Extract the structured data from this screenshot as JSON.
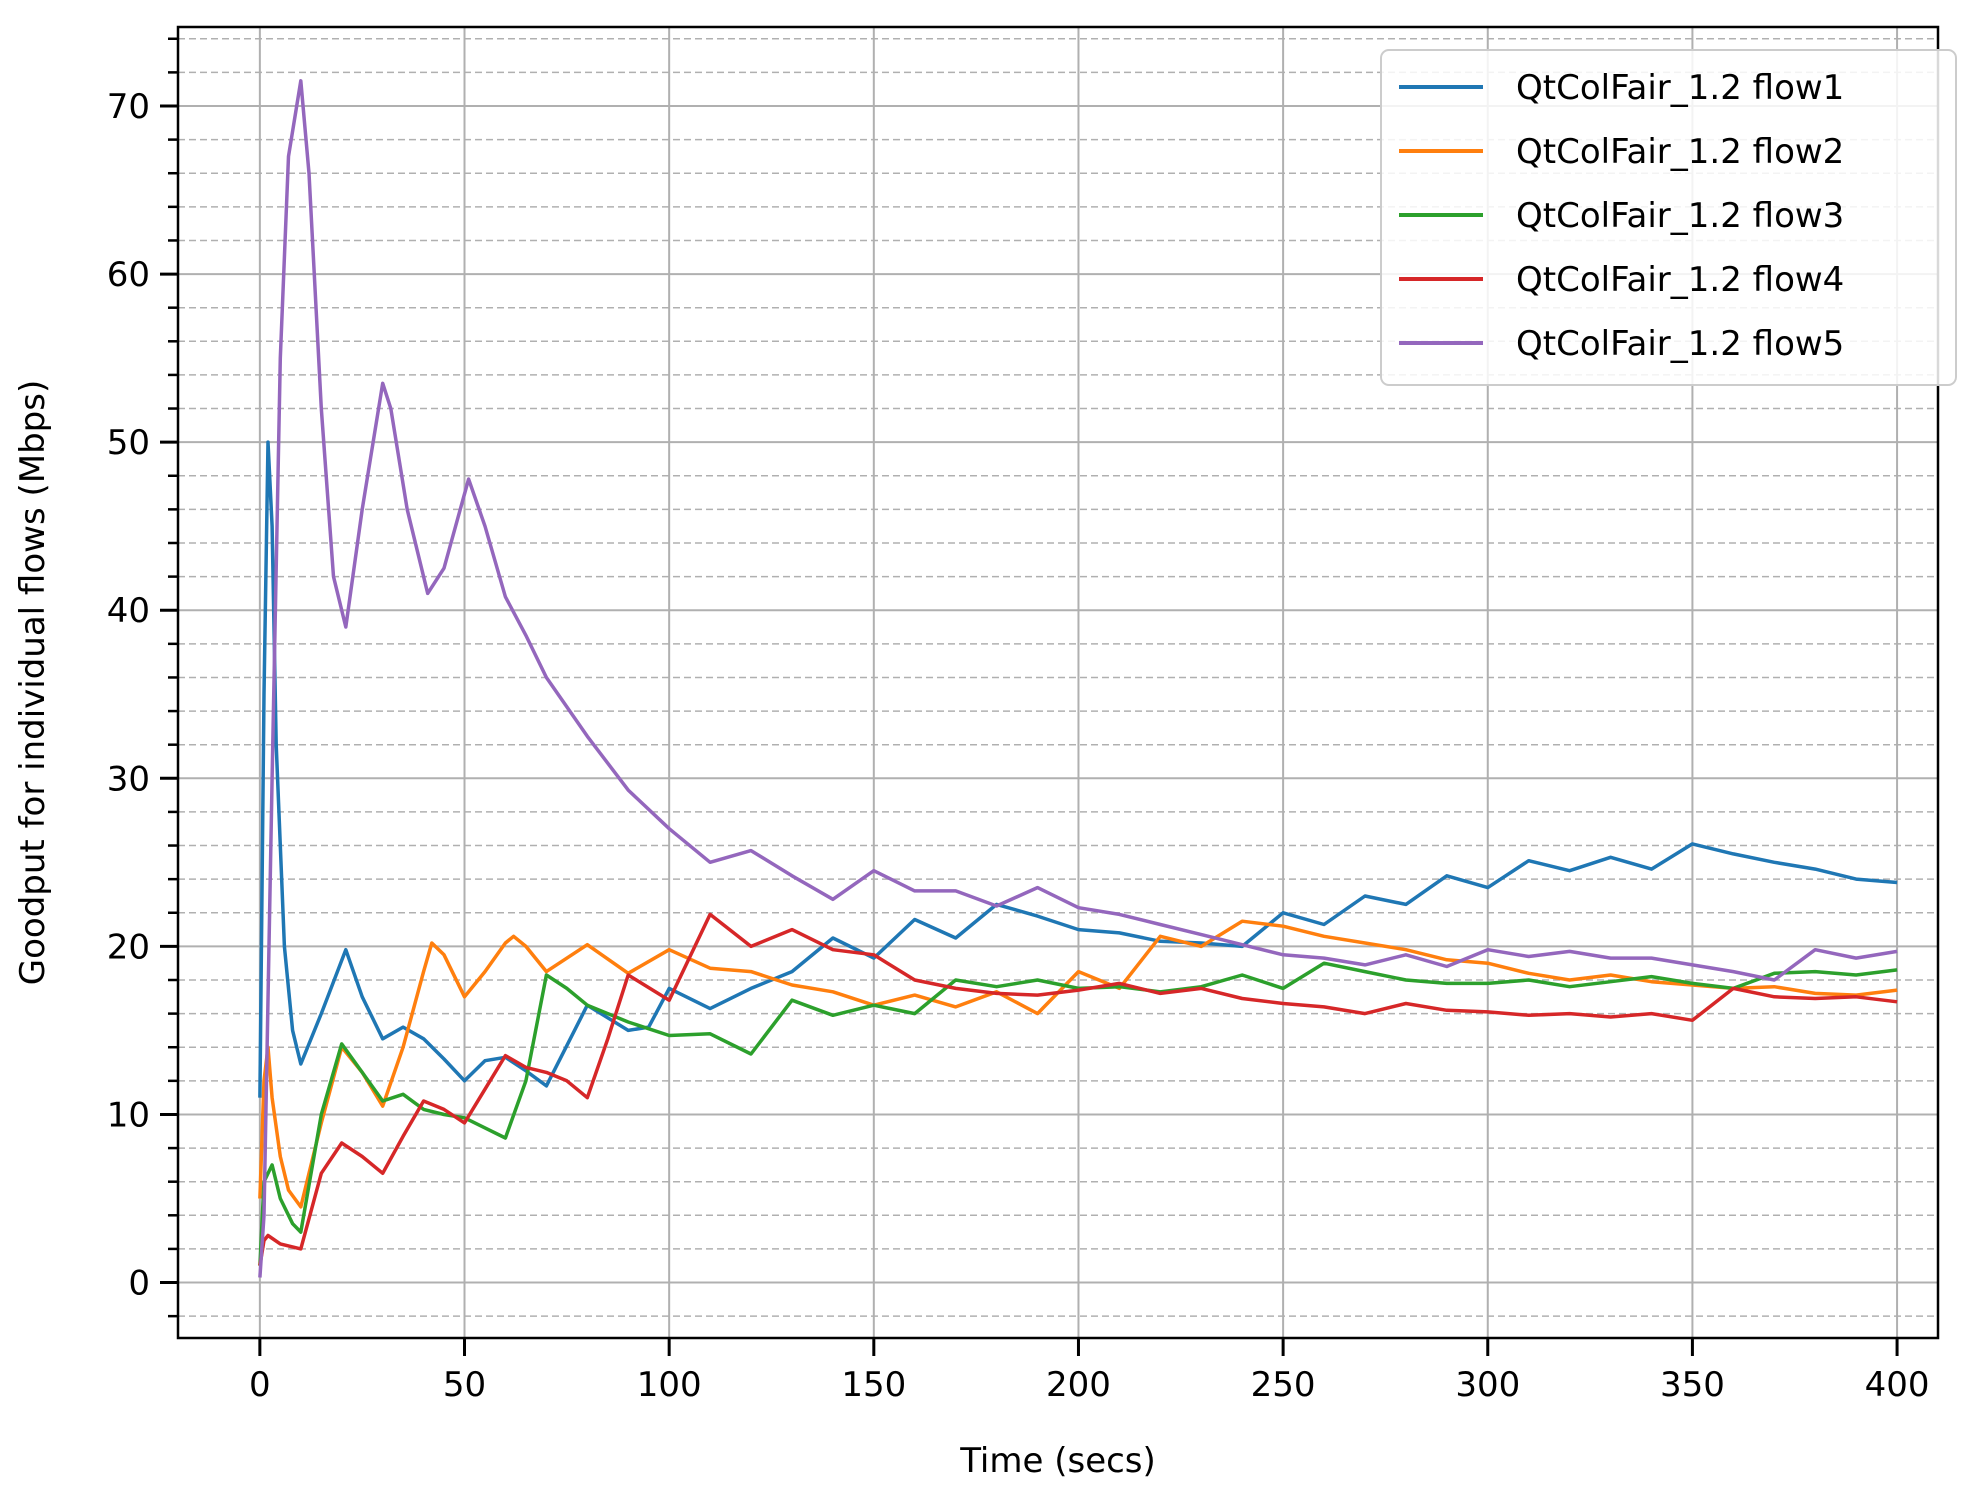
{
  "chart_data": {
    "type": "line",
    "title": "",
    "xlabel": "Time (secs)",
    "ylabel": "Goodput for individual flows (Mbps)",
    "xlim": [
      -20,
      410
    ],
    "ylim": [
      -3.3,
      74.7
    ],
    "xticks": [
      0,
      50,
      100,
      150,
      200,
      250,
      300,
      350,
      400
    ],
    "yticks": [
      0,
      10,
      20,
      30,
      40,
      50,
      60,
      70
    ],
    "minor_yticks_step": 2,
    "grid": {
      "major": true,
      "minor_dashed": true
    },
    "legend_position": "top-right",
    "series": [
      {
        "name": "QtColFair_1.2 flow1",
        "color": "#1f77b4",
        "points": [
          [
            0,
            11
          ],
          [
            1,
            35
          ],
          [
            2,
            50
          ],
          [
            3,
            45
          ],
          [
            4,
            32
          ],
          [
            6,
            20
          ],
          [
            8,
            15
          ],
          [
            10,
            13
          ],
          [
            15,
            16
          ],
          [
            21,
            19.8
          ],
          [
            25,
            17
          ],
          [
            30,
            14.5
          ],
          [
            35,
            15.2
          ],
          [
            40,
            14.5
          ],
          [
            45,
            13.3
          ],
          [
            50,
            12
          ],
          [
            55,
            13.2
          ],
          [
            60,
            13.4
          ],
          [
            65,
            12.6
          ],
          [
            70,
            11.7
          ],
          [
            80,
            16.5
          ],
          [
            90,
            15
          ],
          [
            95,
            15.2
          ],
          [
            100,
            17.5
          ],
          [
            110,
            16.3
          ],
          [
            120,
            17.5
          ],
          [
            130,
            18.5
          ],
          [
            140,
            20.5
          ],
          [
            150,
            19.3
          ],
          [
            160,
            21.6
          ],
          [
            170,
            20.5
          ],
          [
            180,
            22.5
          ],
          [
            190,
            21.8
          ],
          [
            200,
            21
          ],
          [
            210,
            20.8
          ],
          [
            220,
            20.3
          ],
          [
            230,
            20.2
          ],
          [
            240,
            20
          ],
          [
            250,
            22
          ],
          [
            260,
            21.3
          ],
          [
            270,
            23
          ],
          [
            280,
            22.5
          ],
          [
            290,
            24.2
          ],
          [
            300,
            23.5
          ],
          [
            310,
            25.1
          ],
          [
            320,
            24.5
          ],
          [
            330,
            25.3
          ],
          [
            340,
            24.6
          ],
          [
            350,
            26.1
          ],
          [
            360,
            25.5
          ],
          [
            370,
            25
          ],
          [
            380,
            24.6
          ],
          [
            390,
            24
          ],
          [
            400,
            23.8
          ]
        ]
      },
      {
        "name": "QtColFair_1.2 flow2",
        "color": "#ff7f0e",
        "points": [
          [
            0,
            5
          ],
          [
            1,
            12
          ],
          [
            2,
            14
          ],
          [
            3,
            11
          ],
          [
            5,
            7.5
          ],
          [
            7,
            5.5
          ],
          [
            10,
            4.5
          ],
          [
            15,
            9.5
          ],
          [
            20,
            14
          ],
          [
            25,
            12.5
          ],
          [
            30,
            10.5
          ],
          [
            35,
            14
          ],
          [
            40,
            18.5
          ],
          [
            42,
            20.2
          ],
          [
            45,
            19.5
          ],
          [
            50,
            17
          ],
          [
            55,
            18.5
          ],
          [
            60,
            20.2
          ],
          [
            62,
            20.6
          ],
          [
            65,
            20
          ],
          [
            70,
            18.5
          ],
          [
            80,
            20.1
          ],
          [
            90,
            18.4
          ],
          [
            100,
            19.8
          ],
          [
            110,
            18.7
          ],
          [
            120,
            18.5
          ],
          [
            130,
            17.7
          ],
          [
            140,
            17.3
          ],
          [
            150,
            16.5
          ],
          [
            160,
            17.1
          ],
          [
            170,
            16.4
          ],
          [
            180,
            17.3
          ],
          [
            190,
            16
          ],
          [
            200,
            18.5
          ],
          [
            210,
            17.5
          ],
          [
            220,
            20.6
          ],
          [
            230,
            20
          ],
          [
            240,
            21.5
          ],
          [
            250,
            21.2
          ],
          [
            260,
            20.6
          ],
          [
            270,
            20.2
          ],
          [
            280,
            19.8
          ],
          [
            290,
            19.2
          ],
          [
            300,
            19
          ],
          [
            310,
            18.4
          ],
          [
            320,
            18
          ],
          [
            330,
            18.3
          ],
          [
            340,
            17.9
          ],
          [
            350,
            17.7
          ],
          [
            360,
            17.5
          ],
          [
            370,
            17.6
          ],
          [
            380,
            17.2
          ],
          [
            390,
            17.1
          ],
          [
            400,
            17.4
          ]
        ]
      },
      {
        "name": "QtColFair_1.2 flow3",
        "color": "#2ca02c",
        "points": [
          [
            0,
            1
          ],
          [
            1,
            6
          ],
          [
            3,
            7
          ],
          [
            5,
            5
          ],
          [
            8,
            3.5
          ],
          [
            10,
            3
          ],
          [
            15,
            10
          ],
          [
            20,
            14.2
          ],
          [
            25,
            12.5
          ],
          [
            30,
            10.8
          ],
          [
            35,
            11.2
          ],
          [
            40,
            10.3
          ],
          [
            45,
            10
          ],
          [
            50,
            9.8
          ],
          [
            55,
            9.2
          ],
          [
            60,
            8.6
          ],
          [
            65,
            12
          ],
          [
            70,
            18.3
          ],
          [
            75,
            17.5
          ],
          [
            80,
            16.5
          ],
          [
            90,
            15.5
          ],
          [
            100,
            14.7
          ],
          [
            110,
            14.8
          ],
          [
            120,
            13.6
          ],
          [
            130,
            16.8
          ],
          [
            140,
            15.9
          ],
          [
            150,
            16.5
          ],
          [
            160,
            16
          ],
          [
            170,
            18
          ],
          [
            180,
            17.6
          ],
          [
            190,
            18
          ],
          [
            200,
            17.5
          ],
          [
            210,
            17.6
          ],
          [
            220,
            17.3
          ],
          [
            230,
            17.6
          ],
          [
            240,
            18.3
          ],
          [
            250,
            17.5
          ],
          [
            260,
            19
          ],
          [
            270,
            18.5
          ],
          [
            280,
            18
          ],
          [
            290,
            17.8
          ],
          [
            300,
            17.8
          ],
          [
            310,
            18
          ],
          [
            320,
            17.6
          ],
          [
            330,
            17.9
          ],
          [
            340,
            18.2
          ],
          [
            350,
            17.8
          ],
          [
            360,
            17.5
          ],
          [
            370,
            18.4
          ],
          [
            380,
            18.5
          ],
          [
            390,
            18.3
          ],
          [
            400,
            18.6
          ]
        ]
      },
      {
        "name": "QtColFair_1.2 flow4",
        "color": "#d62728",
        "points": [
          [
            0,
            1
          ],
          [
            1,
            2.5
          ],
          [
            2,
            2.8
          ],
          [
            5,
            2.3
          ],
          [
            10,
            2
          ],
          [
            15,
            6.5
          ],
          [
            20,
            8.3
          ],
          [
            25,
            7.5
          ],
          [
            30,
            6.5
          ],
          [
            35,
            8.7
          ],
          [
            40,
            10.8
          ],
          [
            45,
            10.3
          ],
          [
            50,
            9.5
          ],
          [
            55,
            11.5
          ],
          [
            60,
            13.5
          ],
          [
            65,
            12.8
          ],
          [
            70,
            12.5
          ],
          [
            75,
            12
          ],
          [
            80,
            11
          ],
          [
            85,
            14.5
          ],
          [
            90,
            18.3
          ],
          [
            100,
            16.8
          ],
          [
            110,
            21.9
          ],
          [
            120,
            20
          ],
          [
            130,
            21
          ],
          [
            140,
            19.8
          ],
          [
            150,
            19.5
          ],
          [
            160,
            18
          ],
          [
            170,
            17.5
          ],
          [
            180,
            17.2
          ],
          [
            190,
            17.1
          ],
          [
            200,
            17.4
          ],
          [
            210,
            17.8
          ],
          [
            220,
            17.2
          ],
          [
            230,
            17.5
          ],
          [
            240,
            16.9
          ],
          [
            250,
            16.6
          ],
          [
            260,
            16.4
          ],
          [
            270,
            16
          ],
          [
            280,
            16.6
          ],
          [
            290,
            16.2
          ],
          [
            300,
            16.1
          ],
          [
            310,
            15.9
          ],
          [
            320,
            16
          ],
          [
            330,
            15.8
          ],
          [
            340,
            16
          ],
          [
            350,
            15.6
          ],
          [
            360,
            17.5
          ],
          [
            370,
            17
          ],
          [
            380,
            16.9
          ],
          [
            390,
            17
          ],
          [
            400,
            16.7
          ]
        ]
      },
      {
        "name": "QtColFair_1.2 flow5",
        "color": "#9467bd",
        "points": [
          [
            0,
            0.3
          ],
          [
            1,
            4
          ],
          [
            3,
            30
          ],
          [
            5,
            55
          ],
          [
            7,
            67
          ],
          [
            10,
            71.5
          ],
          [
            12,
            66
          ],
          [
            15,
            52
          ],
          [
            18,
            42
          ],
          [
            21,
            39
          ],
          [
            25,
            46
          ],
          [
            30,
            53.5
          ],
          [
            32,
            52
          ],
          [
            36,
            46
          ],
          [
            41,
            41
          ],
          [
            45,
            42.5
          ],
          [
            51,
            47.8
          ],
          [
            55,
            45
          ],
          [
            60,
            40.8
          ],
          [
            65,
            38.5
          ],
          [
            70,
            36
          ],
          [
            80,
            32.5
          ],
          [
            90,
            29.3
          ],
          [
            100,
            27
          ],
          [
            110,
            25
          ],
          [
            120,
            25.7
          ],
          [
            130,
            24.2
          ],
          [
            140,
            22.8
          ],
          [
            150,
            24.5
          ],
          [
            160,
            23.3
          ],
          [
            170,
            23.3
          ],
          [
            180,
            22.4
          ],
          [
            190,
            23.5
          ],
          [
            200,
            22.3
          ],
          [
            210,
            21.9
          ],
          [
            220,
            21.3
          ],
          [
            230,
            20.7
          ],
          [
            240,
            20.1
          ],
          [
            250,
            19.5
          ],
          [
            260,
            19.3
          ],
          [
            270,
            18.9
          ],
          [
            280,
            19.5
          ],
          [
            290,
            18.8
          ],
          [
            300,
            19.8
          ],
          [
            310,
            19.4
          ],
          [
            320,
            19.7
          ],
          [
            330,
            19.3
          ],
          [
            340,
            19.3
          ],
          [
            350,
            18.9
          ],
          [
            360,
            18.5
          ],
          [
            370,
            18
          ],
          [
            380,
            19.8
          ],
          [
            390,
            19.3
          ],
          [
            400,
            19.7
          ]
        ]
      }
    ]
  }
}
